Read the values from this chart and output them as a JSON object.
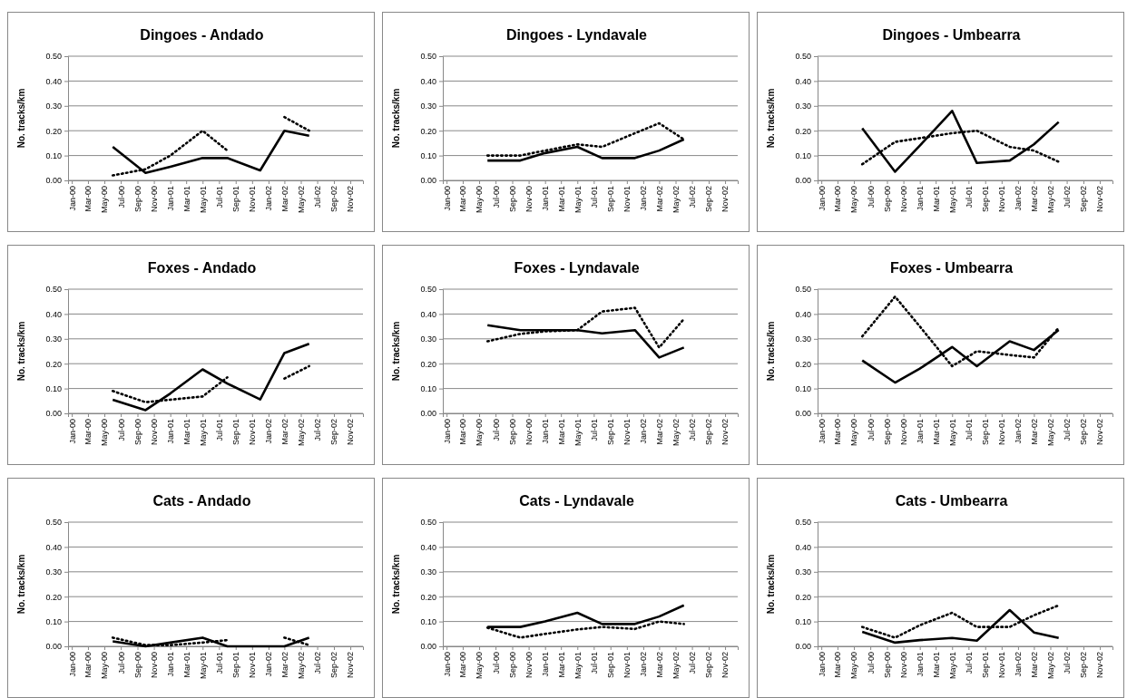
{
  "chart_data": [
    {
      "type": "line",
      "title": "Dingoes - Andado",
      "ylabel": "No. tracks/km",
      "grid": "y",
      "xlim": [
        "2000-01-01",
        "2003-01-01"
      ],
      "ylim": [
        0,
        0.5
      ],
      "xticks": [
        {
          "value": "2000-01-15",
          "label": "Jan-00"
        },
        {
          "value": "2000-03-15",
          "label": "Mar-00"
        },
        {
          "value": "2000-05-15",
          "label": "May-00"
        },
        {
          "value": "2000-07-15",
          "label": "Jul-00"
        },
        {
          "value": "2000-09-15",
          "label": "Sep-00"
        },
        {
          "value": "2000-11-15",
          "label": "Nov-00"
        },
        {
          "value": "2001-01-15",
          "label": "Jan-01"
        },
        {
          "value": "2001-03-15",
          "label": "Mar-01"
        },
        {
          "value": "2001-05-15",
          "label": "May-01"
        },
        {
          "value": "2001-07-15",
          "label": "Jul-01"
        },
        {
          "value": "2001-09-15",
          "label": "Sep-01"
        },
        {
          "value": "2001-11-15",
          "label": "Nov-01"
        },
        {
          "value": "2002-01-15",
          "label": "Jan-02"
        },
        {
          "value": "2002-03-15",
          "label": "Mar-02"
        },
        {
          "value": "2002-05-15",
          "label": "May-02"
        },
        {
          "value": "2002-07-15",
          "label": "Jul-02"
        },
        {
          "value": "2002-09-15",
          "label": "Sep-02"
        },
        {
          "value": "2002-11-15",
          "label": "Nov-02"
        }
      ],
      "yticks": [
        {
          "value": 0,
          "label": "0.00"
        },
        {
          "value": 0.1,
          "label": "0.10"
        },
        {
          "value": 0.2,
          "label": "0.20"
        },
        {
          "value": 0.3,
          "label": "0.30"
        },
        {
          "value": 0.4,
          "label": "0.40"
        },
        {
          "value": 0.5,
          "label": "0.50"
        }
      ],
      "x": [
        "2000-06-15",
        "2000-10-15",
        "2001-01-15",
        "2001-05-15",
        "2001-08-15",
        "2001-12-15",
        "2002-03-15",
        "2002-06-15"
      ],
      "series": [
        {
          "color": "#000000",
          "line_style": "solid",
          "values": [
            0.135,
            0.03,
            0.055,
            0.09,
            0.09,
            0.04,
            0.2,
            0.18
          ]
        },
        {
          "color": "#000000",
          "line_style": "dotted",
          "values": [
            0.02,
            0.045,
            0.1,
            0.2,
            0.12,
            null,
            0.255,
            0.2
          ]
        }
      ]
    },
    {
      "type": "line",
      "title": "Dingoes - Lyndavale",
      "ylabel": "No. tracks/km",
      "grid": "y",
      "xlim": [
        "2000-01-01",
        "2003-01-01"
      ],
      "ylim": [
        0,
        0.5
      ],
      "xticks": [
        {
          "value": "2000-01-15",
          "label": "Jan-00"
        },
        {
          "value": "2000-03-15",
          "label": "Mar-00"
        },
        {
          "value": "2000-05-15",
          "label": "May-00"
        },
        {
          "value": "2000-07-15",
          "label": "Jul-00"
        },
        {
          "value": "2000-09-15",
          "label": "Sep-00"
        },
        {
          "value": "2000-11-15",
          "label": "Nov-00"
        },
        {
          "value": "2001-01-15",
          "label": "Jan-01"
        },
        {
          "value": "2001-03-15",
          "label": "Mar-01"
        },
        {
          "value": "2001-05-15",
          "label": "May-01"
        },
        {
          "value": "2001-07-15",
          "label": "Jul-01"
        },
        {
          "value": "2001-09-15",
          "label": "Sep-01"
        },
        {
          "value": "2001-11-15",
          "label": "Nov-01"
        },
        {
          "value": "2002-01-15",
          "label": "Jan-02"
        },
        {
          "value": "2002-03-15",
          "label": "Mar-02"
        },
        {
          "value": "2002-05-15",
          "label": "May-02"
        },
        {
          "value": "2002-07-15",
          "label": "Jul-02"
        },
        {
          "value": "2002-09-15",
          "label": "Sep-02"
        },
        {
          "value": "2002-11-15",
          "label": "Nov-02"
        }
      ],
      "yticks": [
        {
          "value": 0,
          "label": "0.00"
        },
        {
          "value": 0.1,
          "label": "0.10"
        },
        {
          "value": 0.2,
          "label": "0.20"
        },
        {
          "value": 0.3,
          "label": "0.30"
        },
        {
          "value": 0.4,
          "label": "0.40"
        },
        {
          "value": 0.5,
          "label": "0.50"
        }
      ],
      "x": [
        "2000-06-15",
        "2000-10-15",
        "2001-01-15",
        "2001-05-15",
        "2001-08-15",
        "2001-12-15",
        "2002-03-15",
        "2002-06-15"
      ],
      "series": [
        {
          "color": "#000000",
          "line_style": "solid",
          "values": [
            0.08,
            0.08,
            0.11,
            0.135,
            0.09,
            0.09,
            0.12,
            0.165
          ]
        },
        {
          "color": "#000000",
          "line_style": "dotted",
          "values": [
            0.1,
            0.1,
            0.12,
            0.145,
            0.135,
            0.19,
            0.23,
            0.165
          ]
        }
      ]
    },
    {
      "type": "line",
      "title": "Dingoes - Umbearra",
      "ylabel": "No. tracks/km",
      "grid": "y",
      "xlim": [
        "2000-01-01",
        "2003-01-01"
      ],
      "ylim": [
        0,
        0.5
      ],
      "xticks": [
        {
          "value": "2000-01-15",
          "label": "Jan-00"
        },
        {
          "value": "2000-03-15",
          "label": "Mar-00"
        },
        {
          "value": "2000-05-15",
          "label": "May-00"
        },
        {
          "value": "2000-07-15",
          "label": "Jul-00"
        },
        {
          "value": "2000-09-15",
          "label": "Sep-00"
        },
        {
          "value": "2000-11-15",
          "label": "Nov-00"
        },
        {
          "value": "2001-01-15",
          "label": "Jan-01"
        },
        {
          "value": "2001-03-15",
          "label": "Mar-01"
        },
        {
          "value": "2001-05-15",
          "label": "May-01"
        },
        {
          "value": "2001-07-15",
          "label": "Jul-01"
        },
        {
          "value": "2001-09-15",
          "label": "Sep-01"
        },
        {
          "value": "2001-11-15",
          "label": "Nov-01"
        },
        {
          "value": "2002-01-15",
          "label": "Jan-02"
        },
        {
          "value": "2002-03-15",
          "label": "Mar-02"
        },
        {
          "value": "2002-05-15",
          "label": "May-02"
        },
        {
          "value": "2002-07-15",
          "label": "Jul-02"
        },
        {
          "value": "2002-09-15",
          "label": "Sep-02"
        },
        {
          "value": "2002-11-15",
          "label": "Nov-02"
        }
      ],
      "yticks": [
        {
          "value": 0,
          "label": "0.00"
        },
        {
          "value": 0.1,
          "label": "0.10"
        },
        {
          "value": 0.2,
          "label": "0.20"
        },
        {
          "value": 0.3,
          "label": "0.30"
        },
        {
          "value": 0.4,
          "label": "0.40"
        },
        {
          "value": 0.5,
          "label": "0.50"
        }
      ],
      "x": [
        "2000-06-15",
        "2000-10-15",
        "2001-01-15",
        "2001-05-15",
        "2001-08-15",
        "2001-12-15",
        "2002-03-15",
        "2002-06-15"
      ],
      "series": [
        {
          "color": "#000000",
          "line_style": "solid",
          "values": [
            0.21,
            0.035,
            0.14,
            0.28,
            0.07,
            0.08,
            0.145,
            0.235
          ]
        },
        {
          "color": "#000000",
          "line_style": "dotted",
          "values": [
            0.065,
            0.155,
            0.17,
            0.19,
            0.2,
            0.135,
            0.12,
            0.075
          ]
        }
      ]
    },
    {
      "type": "line",
      "title": "Foxes - Andado",
      "ylabel": "No. tracks/km",
      "grid": "y",
      "xlim": [
        "2000-01-01",
        "2003-01-01"
      ],
      "ylim": [
        0,
        0.5
      ],
      "xticks": [
        {
          "value": "2000-01-15",
          "label": "Jan-00"
        },
        {
          "value": "2000-03-15",
          "label": "Mar-00"
        },
        {
          "value": "2000-05-15",
          "label": "May-00"
        },
        {
          "value": "2000-07-15",
          "label": "Jul-00"
        },
        {
          "value": "2000-09-15",
          "label": "Sep-00"
        },
        {
          "value": "2000-11-15",
          "label": "Nov-00"
        },
        {
          "value": "2001-01-15",
          "label": "Jan-01"
        },
        {
          "value": "2001-03-15",
          "label": "Mar-01"
        },
        {
          "value": "2001-05-15",
          "label": "May-01"
        },
        {
          "value": "2001-07-15",
          "label": "Jul-01"
        },
        {
          "value": "2001-09-15",
          "label": "Sep-01"
        },
        {
          "value": "2001-11-15",
          "label": "Nov-01"
        },
        {
          "value": "2002-01-15",
          "label": "Jan-02"
        },
        {
          "value": "2002-03-15",
          "label": "Mar-02"
        },
        {
          "value": "2002-05-15",
          "label": "May-02"
        },
        {
          "value": "2002-07-15",
          "label": "Jul-02"
        },
        {
          "value": "2002-09-15",
          "label": "Sep-02"
        },
        {
          "value": "2002-11-15",
          "label": "Nov-02"
        }
      ],
      "yticks": [
        {
          "value": 0,
          "label": "0.00"
        },
        {
          "value": 0.1,
          "label": "0.10"
        },
        {
          "value": 0.2,
          "label": "0.20"
        },
        {
          "value": 0.3,
          "label": "0.30"
        },
        {
          "value": 0.4,
          "label": "0.40"
        },
        {
          "value": 0.5,
          "label": "0.50"
        }
      ],
      "x": [
        "2000-06-15",
        "2000-10-15",
        "2001-01-15",
        "2001-05-15",
        "2001-08-15",
        "2001-12-15",
        "2002-03-15",
        "2002-06-15"
      ],
      "series": [
        {
          "color": "#000000",
          "line_style": "solid",
          "values": [
            0.055,
            0.013,
            0.08,
            0.177,
            0.12,
            0.056,
            0.243,
            0.28
          ]
        },
        {
          "color": "#000000",
          "line_style": "dotted",
          "values": [
            0.09,
            0.045,
            0.055,
            0.068,
            0.145,
            null,
            0.14,
            0.19
          ]
        }
      ]
    },
    {
      "type": "line",
      "title": "Foxes - Lyndavale",
      "ylabel": "No. tracks/km",
      "grid": "y",
      "xlim": [
        "2000-01-01",
        "2003-01-01"
      ],
      "ylim": [
        0,
        0.5
      ],
      "xticks": [
        {
          "value": "2000-01-15",
          "label": "Jan-00"
        },
        {
          "value": "2000-03-15",
          "label": "Mar-00"
        },
        {
          "value": "2000-05-15",
          "label": "May-00"
        },
        {
          "value": "2000-07-15",
          "label": "Jul-00"
        },
        {
          "value": "2000-09-15",
          "label": "Sep-00"
        },
        {
          "value": "2000-11-15",
          "label": "Nov-00"
        },
        {
          "value": "2001-01-15",
          "label": "Jan-01"
        },
        {
          "value": "2001-03-15",
          "label": "Mar-01"
        },
        {
          "value": "2001-05-15",
          "label": "May-01"
        },
        {
          "value": "2001-07-15",
          "label": "Jul-01"
        },
        {
          "value": "2001-09-15",
          "label": "Sep-01"
        },
        {
          "value": "2001-11-15",
          "label": "Nov-01"
        },
        {
          "value": "2002-01-15",
          "label": "Jan-02"
        },
        {
          "value": "2002-03-15",
          "label": "Mar-02"
        },
        {
          "value": "2002-05-15",
          "label": "May-02"
        },
        {
          "value": "2002-07-15",
          "label": "Jul-02"
        },
        {
          "value": "2002-09-15",
          "label": "Sep-02"
        },
        {
          "value": "2002-11-15",
          "label": "Nov-02"
        }
      ],
      "yticks": [
        {
          "value": 0,
          "label": "0.00"
        },
        {
          "value": 0.1,
          "label": "0.10"
        },
        {
          "value": 0.2,
          "label": "0.20"
        },
        {
          "value": 0.3,
          "label": "0.30"
        },
        {
          "value": 0.4,
          "label": "0.40"
        },
        {
          "value": 0.5,
          "label": "0.50"
        }
      ],
      "x": [
        "2000-06-15",
        "2000-10-15",
        "2001-01-15",
        "2001-05-15",
        "2001-08-15",
        "2001-12-15",
        "2002-03-15",
        "2002-06-15"
      ],
      "series": [
        {
          "color": "#000000",
          "line_style": "solid",
          "values": [
            0.355,
            0.335,
            0.335,
            0.335,
            0.322,
            0.335,
            0.225,
            0.265
          ]
        },
        {
          "color": "#000000",
          "line_style": "dotted",
          "values": [
            0.29,
            0.32,
            0.33,
            0.335,
            0.41,
            0.425,
            0.265,
            0.38
          ]
        }
      ]
    },
    {
      "type": "line",
      "title": "Foxes - Umbearra",
      "ylabel": "No. tracks/km",
      "grid": "y",
      "xlim": [
        "2000-01-01",
        "2003-01-01"
      ],
      "ylim": [
        0,
        0.5
      ],
      "xticks": [
        {
          "value": "2000-01-15",
          "label": "Jan-00"
        },
        {
          "value": "2000-03-15",
          "label": "Mar-00"
        },
        {
          "value": "2000-05-15",
          "label": "May-00"
        },
        {
          "value": "2000-07-15",
          "label": "Jul-00"
        },
        {
          "value": "2000-09-15",
          "label": "Sep-00"
        },
        {
          "value": "2000-11-15",
          "label": "Nov-00"
        },
        {
          "value": "2001-01-15",
          "label": "Jan-01"
        },
        {
          "value": "2001-03-15",
          "label": "Mar-01"
        },
        {
          "value": "2001-05-15",
          "label": "May-01"
        },
        {
          "value": "2001-07-15",
          "label": "Jul-01"
        },
        {
          "value": "2001-09-15",
          "label": "Sep-01"
        },
        {
          "value": "2001-11-15",
          "label": "Nov-01"
        },
        {
          "value": "2002-01-15",
          "label": "Jan-02"
        },
        {
          "value": "2002-03-15",
          "label": "Mar-02"
        },
        {
          "value": "2002-05-15",
          "label": "May-02"
        },
        {
          "value": "2002-07-15",
          "label": "Jul-02"
        },
        {
          "value": "2002-09-15",
          "label": "Sep-02"
        },
        {
          "value": "2002-11-15",
          "label": "Nov-02"
        }
      ],
      "yticks": [
        {
          "value": 0,
          "label": "0.00"
        },
        {
          "value": 0.1,
          "label": "0.10"
        },
        {
          "value": 0.2,
          "label": "0.20"
        },
        {
          "value": 0.3,
          "label": "0.30"
        },
        {
          "value": 0.4,
          "label": "0.40"
        },
        {
          "value": 0.5,
          "label": "0.50"
        }
      ],
      "x": [
        "2000-06-15",
        "2000-10-15",
        "2001-01-15",
        "2001-05-15",
        "2001-08-15",
        "2001-12-15",
        "2002-03-15",
        "2002-06-15"
      ],
      "series": [
        {
          "color": "#000000",
          "line_style": "solid",
          "values": [
            0.213,
            0.124,
            0.18,
            0.267,
            0.19,
            0.29,
            0.255,
            0.336
          ]
        },
        {
          "color": "#000000",
          "line_style": "dotted",
          "values": [
            0.31,
            0.47,
            0.35,
            0.19,
            0.25,
            0.235,
            0.225,
            0.345
          ]
        }
      ]
    },
    {
      "type": "line",
      "title": "Cats - Andado",
      "ylabel": "No. tracks/km",
      "grid": "y",
      "xlim": [
        "2000-01-01",
        "2003-01-01"
      ],
      "ylim": [
        0,
        0.5
      ],
      "xticks": [
        {
          "value": "2000-01-15",
          "label": "Jan-00"
        },
        {
          "value": "2000-03-15",
          "label": "Mar-00"
        },
        {
          "value": "2000-05-15",
          "label": "May-00"
        },
        {
          "value": "2000-07-15",
          "label": "Jul-00"
        },
        {
          "value": "2000-09-15",
          "label": "Sep-00"
        },
        {
          "value": "2000-11-15",
          "label": "Nov-00"
        },
        {
          "value": "2001-01-15",
          "label": "Jan-01"
        },
        {
          "value": "2001-03-15",
          "label": "Mar-01"
        },
        {
          "value": "2001-05-15",
          "label": "May-01"
        },
        {
          "value": "2001-07-15",
          "label": "Jul-01"
        },
        {
          "value": "2001-09-15",
          "label": "Sep-01"
        },
        {
          "value": "2001-11-15",
          "label": "Nov-01"
        },
        {
          "value": "2002-01-15",
          "label": "Jan-02"
        },
        {
          "value": "2002-03-15",
          "label": "Mar-02"
        },
        {
          "value": "2002-05-15",
          "label": "May-02"
        },
        {
          "value": "2002-07-15",
          "label": "Jul-02"
        },
        {
          "value": "2002-09-15",
          "label": "Sep-02"
        },
        {
          "value": "2002-11-15",
          "label": "Nov-02"
        }
      ],
      "yticks": [
        {
          "value": 0,
          "label": "0.00"
        },
        {
          "value": 0.1,
          "label": "0.10"
        },
        {
          "value": 0.2,
          "label": "0.20"
        },
        {
          "value": 0.3,
          "label": "0.30"
        },
        {
          "value": 0.4,
          "label": "0.40"
        },
        {
          "value": 0.5,
          "label": "0.50"
        }
      ],
      "x": [
        "2000-06-15",
        "2000-10-15",
        "2001-01-15",
        "2001-05-15",
        "2001-08-15",
        "2001-12-15",
        "2002-03-15",
        "2002-06-15"
      ],
      "series": [
        {
          "color": "#000000",
          "line_style": "solid",
          "values": [
            0.02,
            0,
            0.015,
            0.035,
            0,
            0,
            0,
            0.035
          ]
        },
        {
          "color": "#000000",
          "line_style": "dotted",
          "values": [
            0.035,
            0.005,
            0.005,
            0.015,
            0.025,
            null,
            0.035,
            0.005
          ]
        }
      ]
    },
    {
      "type": "line",
      "title": "Cats - Lyndavale",
      "ylabel": "No. tracks/km",
      "grid": "y",
      "xlim": [
        "2000-01-01",
        "2003-01-01"
      ],
      "ylim": [
        0,
        0.5
      ],
      "xticks": [
        {
          "value": "2000-01-15",
          "label": "Jan-00"
        },
        {
          "value": "2000-03-15",
          "label": "Mar-00"
        },
        {
          "value": "2000-05-15",
          "label": "May-00"
        },
        {
          "value": "2000-07-15",
          "label": "Jul-00"
        },
        {
          "value": "2000-09-15",
          "label": "Sep-00"
        },
        {
          "value": "2000-11-15",
          "label": "Nov-00"
        },
        {
          "value": "2001-01-15",
          "label": "Jan-01"
        },
        {
          "value": "2001-03-15",
          "label": "Mar-01"
        },
        {
          "value": "2001-05-15",
          "label": "May-01"
        },
        {
          "value": "2001-07-15",
          "label": "Jul-01"
        },
        {
          "value": "2001-09-15",
          "label": "Sep-01"
        },
        {
          "value": "2001-11-15",
          "label": "Nov-01"
        },
        {
          "value": "2002-01-15",
          "label": "Jan-02"
        },
        {
          "value": "2002-03-15",
          "label": "Mar-02"
        },
        {
          "value": "2002-05-15",
          "label": "May-02"
        },
        {
          "value": "2002-07-15",
          "label": "Jul-02"
        },
        {
          "value": "2002-09-15",
          "label": "Sep-02"
        },
        {
          "value": "2002-11-15",
          "label": "Nov-02"
        }
      ],
      "yticks": [
        {
          "value": 0,
          "label": "0.00"
        },
        {
          "value": 0.1,
          "label": "0.10"
        },
        {
          "value": 0.2,
          "label": "0.20"
        },
        {
          "value": 0.3,
          "label": "0.30"
        },
        {
          "value": 0.4,
          "label": "0.40"
        },
        {
          "value": 0.5,
          "label": "0.50"
        }
      ],
      "x": [
        "2000-06-15",
        "2000-10-15",
        "2001-01-15",
        "2001-05-15",
        "2001-08-15",
        "2001-12-15",
        "2002-03-15",
        "2002-06-15"
      ],
      "series": [
        {
          "color": "#000000",
          "line_style": "solid",
          "values": [
            0.078,
            0.078,
            0.1,
            0.135,
            0.09,
            0.09,
            0.12,
            0.165
          ]
        },
        {
          "color": "#000000",
          "line_style": "dotted",
          "values": [
            0.075,
            0.035,
            0.05,
            0.068,
            0.078,
            0.07,
            0.1,
            0.09
          ]
        }
      ]
    },
    {
      "type": "line",
      "title": "Cats - Umbearra",
      "ylabel": "No. tracks/km",
      "grid": "y",
      "xlim": [
        "2000-01-01",
        "2003-01-01"
      ],
      "ylim": [
        0,
        0.5
      ],
      "xticks": [
        {
          "value": "2000-01-15",
          "label": "Jan-00"
        },
        {
          "value": "2000-03-15",
          "label": "Mar-00"
        },
        {
          "value": "2000-05-15",
          "label": "May-00"
        },
        {
          "value": "2000-07-15",
          "label": "Jul-00"
        },
        {
          "value": "2000-09-15",
          "label": "Sep-00"
        },
        {
          "value": "2000-11-15",
          "label": "Nov-00"
        },
        {
          "value": "2001-01-15",
          "label": "Jan-01"
        },
        {
          "value": "2001-03-15",
          "label": "Mar-01"
        },
        {
          "value": "2001-05-15",
          "label": "May-01"
        },
        {
          "value": "2001-07-15",
          "label": "Jul-01"
        },
        {
          "value": "2001-09-15",
          "label": "Sep-01"
        },
        {
          "value": "2001-11-15",
          "label": "Nov-01"
        },
        {
          "value": "2002-01-15",
          "label": "Jan-02"
        },
        {
          "value": "2002-03-15",
          "label": "Mar-02"
        },
        {
          "value": "2002-05-15",
          "label": "May-02"
        },
        {
          "value": "2002-07-15",
          "label": "Jul-02"
        },
        {
          "value": "2002-09-15",
          "label": "Sep-02"
        },
        {
          "value": "2002-11-15",
          "label": "Nov-02"
        }
      ],
      "yticks": [
        {
          "value": 0,
          "label": "0.00"
        },
        {
          "value": 0.1,
          "label": "0.10"
        },
        {
          "value": 0.2,
          "label": "0.20"
        },
        {
          "value": 0.3,
          "label": "0.30"
        },
        {
          "value": 0.4,
          "label": "0.40"
        },
        {
          "value": 0.5,
          "label": "0.50"
        }
      ],
      "x": [
        "2000-06-15",
        "2000-10-15",
        "2001-01-15",
        "2001-05-15",
        "2001-08-15",
        "2001-12-15",
        "2002-03-15",
        "2002-06-15"
      ],
      "series": [
        {
          "color": "#000000",
          "line_style": "solid",
          "values": [
            0.058,
            0.015,
            0.025,
            0.034,
            0.023,
            0.146,
            0.056,
            0.034
          ]
        },
        {
          "color": "#000000",
          "line_style": "dotted",
          "values": [
            0.078,
            0.035,
            0.085,
            0.135,
            0.078,
            0.078,
            0.125,
            0.165
          ]
        }
      ]
    }
  ]
}
